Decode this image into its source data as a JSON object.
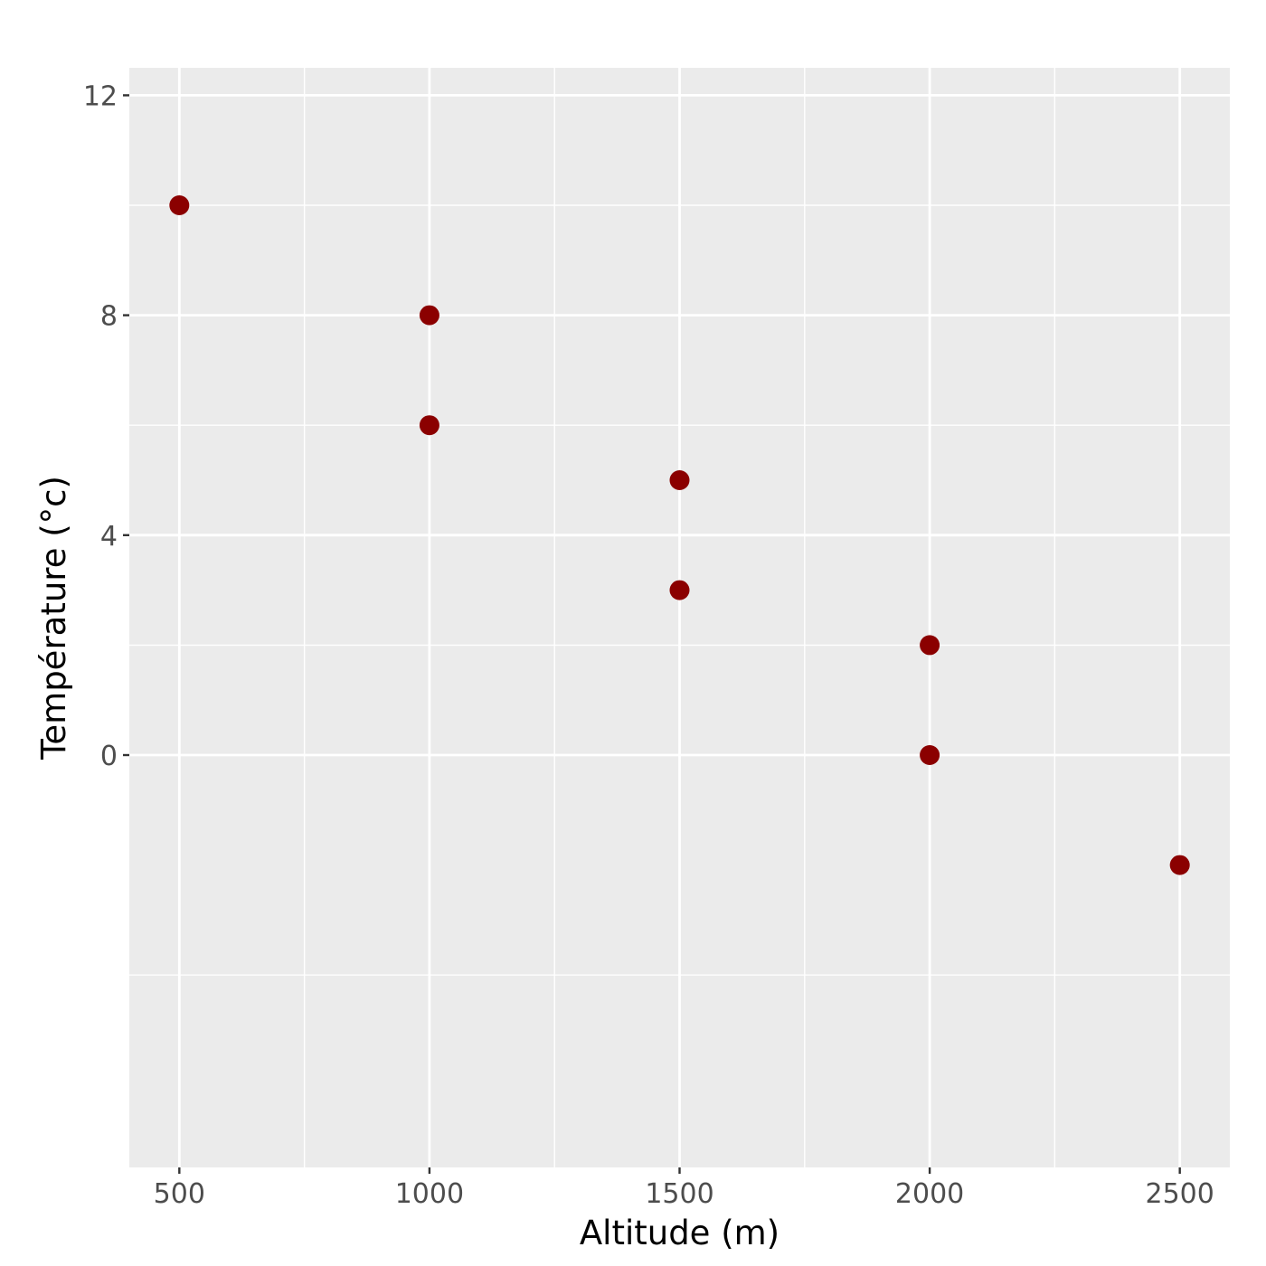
{
  "chart_data": {
    "type": "scatter",
    "xlabel": "Altitude (m)",
    "ylabel": "Température (°c)",
    "xlim": [
      400,
      2600
    ],
    "ylim": [
      -7.5,
      12.5
    ],
    "x_ticks": [
      500,
      1000,
      1500,
      2000,
      2500
    ],
    "y_ticks": [
      0,
      4,
      8,
      12
    ],
    "x_minor_ticks": [
      750,
      1250,
      1750,
      2250
    ],
    "y_minor_ticks": [
      -4,
      2,
      6,
      10
    ],
    "grid": true,
    "legend": "none",
    "point_color": "#8b0000",
    "panel_color": "#ebebeb",
    "grid_color": "#ffffff",
    "points": [
      {
        "x": 500,
        "y": 10
      },
      {
        "x": 1000,
        "y": 8
      },
      {
        "x": 1000,
        "y": 6
      },
      {
        "x": 1500,
        "y": 5
      },
      {
        "x": 1500,
        "y": 3
      },
      {
        "x": 2000,
        "y": 2
      },
      {
        "x": 2000,
        "y": 0
      },
      {
        "x": 2500,
        "y": -2
      }
    ]
  }
}
